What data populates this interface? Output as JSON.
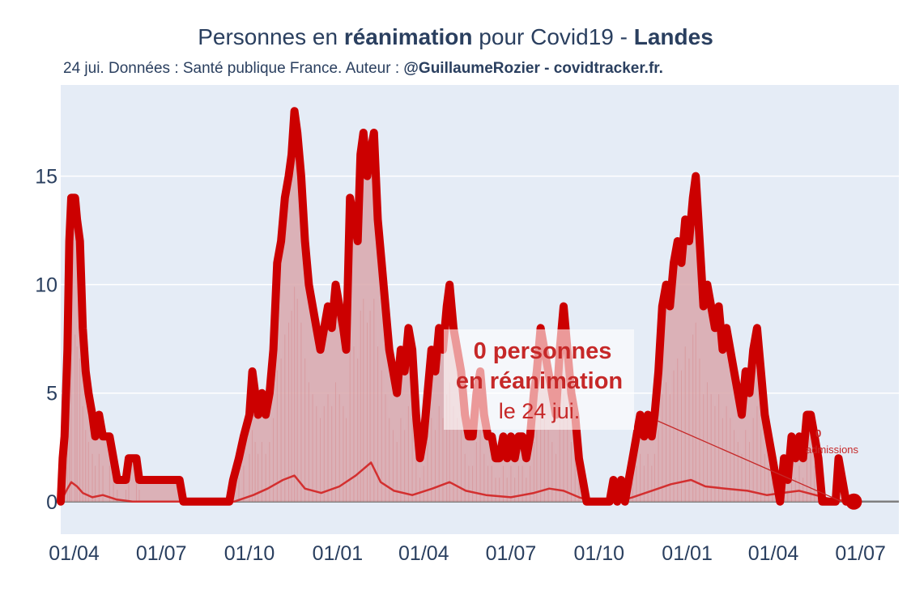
{
  "title": {
    "part1": "Personnes en ",
    "bold1": "réanimation",
    "part2": " pour Covid19 - ",
    "bold2": "Landes"
  },
  "subtitle": {
    "text": "24 jui. Données : Santé publique France. Auteur : ",
    "bold": "@GuillaumeRozier - covidtracker.fr."
  },
  "annotation": {
    "line1": "0 personnes",
    "line2": "en réanimation",
    "line3": "le 24 jui.",
    "small1": "0",
    "small2": "admissions"
  },
  "colors": {
    "main_line": "#cc0000",
    "fill": "#d9a7ab",
    "admissions_line": "#d32f2f",
    "background": "#e5ecf6",
    "grid": "#ffffff",
    "zero_line": "#7f7f7f"
  },
  "chart_data": {
    "type": "line",
    "x_axis": {
      "tick_labels": [
        "01/04",
        "01/07",
        "01/10",
        "01/01",
        "01/04",
        "01/07",
        "01/10",
        "01/01",
        "01/04",
        "01/07"
      ],
      "tick_dates": [
        "2020-04-01",
        "2020-07-01",
        "2020-10-01",
        "2021-01-01",
        "2021-04-01",
        "2021-07-01",
        "2021-10-01",
        "2022-01-01",
        "2022-04-01",
        "2022-07-01"
      ],
      "range": [
        "2020-03-18",
        "2022-08-10"
      ]
    },
    "y_axis": {
      "tick_values": [
        0,
        5,
        10,
        15
      ],
      "range": [
        -1.5,
        19.2
      ]
    },
    "grid": true,
    "series": [
      {
        "role": "reanimation",
        "points": [
          [
            "2020-03-18",
            0
          ],
          [
            "2020-03-20",
            2
          ],
          [
            "2020-03-22",
            3
          ],
          [
            "2020-03-25",
            7
          ],
          [
            "2020-03-27",
            12
          ],
          [
            "2020-03-29",
            14
          ],
          [
            "2020-04-02",
            14
          ],
          [
            "2020-04-04",
            13
          ],
          [
            "2020-04-07",
            12
          ],
          [
            "2020-04-10",
            8
          ],
          [
            "2020-04-13",
            6
          ],
          [
            "2020-04-16",
            5
          ],
          [
            "2020-04-20",
            4
          ],
          [
            "2020-04-23",
            3
          ],
          [
            "2020-04-27",
            4
          ],
          [
            "2020-05-01",
            3
          ],
          [
            "2020-05-08",
            3
          ],
          [
            "2020-05-12",
            2
          ],
          [
            "2020-05-16",
            1
          ],
          [
            "2020-05-25",
            1
          ],
          [
            "2020-05-28",
            2
          ],
          [
            "2020-06-05",
            2
          ],
          [
            "2020-06-08",
            1
          ],
          [
            "2020-07-20",
            1
          ],
          [
            "2020-07-24",
            0
          ],
          [
            "2020-09-10",
            0
          ],
          [
            "2020-09-14",
            1
          ],
          [
            "2020-09-20",
            2
          ],
          [
            "2020-09-25",
            3
          ],
          [
            "2020-10-01",
            4
          ],
          [
            "2020-10-04",
            6
          ],
          [
            "2020-10-07",
            5
          ],
          [
            "2020-10-10",
            4
          ],
          [
            "2020-10-14",
            5
          ],
          [
            "2020-10-18",
            4
          ],
          [
            "2020-10-22",
            5
          ],
          [
            "2020-10-26",
            7
          ],
          [
            "2020-10-30",
            11
          ],
          [
            "2020-11-03",
            12
          ],
          [
            "2020-11-07",
            14
          ],
          [
            "2020-11-11",
            15
          ],
          [
            "2020-11-14",
            16
          ],
          [
            "2020-11-17",
            18
          ],
          [
            "2020-11-20",
            17
          ],
          [
            "2020-11-24",
            15
          ],
          [
            "2020-11-28",
            12
          ],
          [
            "2020-12-02",
            10
          ],
          [
            "2020-12-06",
            9
          ],
          [
            "2020-12-10",
            8
          ],
          [
            "2020-12-14",
            7
          ],
          [
            "2020-12-18",
            8
          ],
          [
            "2020-12-22",
            9
          ],
          [
            "2020-12-26",
            8
          ],
          [
            "2020-12-30",
            10
          ],
          [
            "2021-01-03",
            9
          ],
          [
            "2021-01-07",
            8
          ],
          [
            "2021-01-10",
            7
          ],
          [
            "2021-01-14",
            14
          ],
          [
            "2021-01-18",
            13
          ],
          [
            "2021-01-22",
            12
          ],
          [
            "2021-01-25",
            16
          ],
          [
            "2021-01-28",
            17
          ],
          [
            "2021-02-01",
            15
          ],
          [
            "2021-02-04",
            16
          ],
          [
            "2021-02-08",
            17
          ],
          [
            "2021-02-12",
            13
          ],
          [
            "2021-02-16",
            11
          ],
          [
            "2021-02-20",
            9
          ],
          [
            "2021-02-24",
            7
          ],
          [
            "2021-02-28",
            6
          ],
          [
            "2021-03-04",
            5
          ],
          [
            "2021-03-08",
            7
          ],
          [
            "2021-03-12",
            6
          ],
          [
            "2021-03-16",
            8
          ],
          [
            "2021-03-20",
            7
          ],
          [
            "2021-03-24",
            4
          ],
          [
            "2021-03-28",
            2
          ],
          [
            "2021-04-01",
            3
          ],
          [
            "2021-04-05",
            5
          ],
          [
            "2021-04-09",
            7
          ],
          [
            "2021-04-13",
            6
          ],
          [
            "2021-04-17",
            8
          ],
          [
            "2021-04-21",
            7
          ],
          [
            "2021-04-25",
            9
          ],
          [
            "2021-04-28",
            10
          ],
          [
            "2021-05-02",
            8
          ],
          [
            "2021-05-06",
            7
          ],
          [
            "2021-05-10",
            6
          ],
          [
            "2021-05-14",
            4
          ],
          [
            "2021-05-18",
            3
          ],
          [
            "2021-05-22",
            3
          ],
          [
            "2021-05-26",
            5
          ],
          [
            "2021-05-30",
            6
          ],
          [
            "2021-06-03",
            4
          ],
          [
            "2021-06-07",
            3
          ],
          [
            "2021-06-11",
            3
          ],
          [
            "2021-06-15",
            2
          ],
          [
            "2021-06-19",
            2
          ],
          [
            "2021-06-23",
            3
          ],
          [
            "2021-06-27",
            2
          ],
          [
            "2021-07-01",
            3
          ],
          [
            "2021-07-05",
            2
          ],
          [
            "2021-07-09",
            3
          ],
          [
            "2021-07-13",
            3
          ],
          [
            "2021-07-17",
            2
          ],
          [
            "2021-07-21",
            3
          ],
          [
            "2021-07-25",
            5
          ],
          [
            "2021-07-28",
            6
          ],
          [
            "2021-08-01",
            8
          ],
          [
            "2021-08-05",
            7
          ],
          [
            "2021-08-09",
            6
          ],
          [
            "2021-08-13",
            5
          ],
          [
            "2021-08-17",
            4
          ],
          [
            "2021-08-21",
            7
          ],
          [
            "2021-08-25",
            9
          ],
          [
            "2021-08-29",
            7
          ],
          [
            "2021-09-02",
            5
          ],
          [
            "2021-09-06",
            4
          ],
          [
            "2021-09-10",
            2
          ],
          [
            "2021-09-14",
            1
          ],
          [
            "2021-09-18",
            0
          ],
          [
            "2021-10-12",
            0
          ],
          [
            "2021-10-16",
            1
          ],
          [
            "2021-10-20",
            0
          ],
          [
            "2021-10-24",
            1
          ],
          [
            "2021-10-28",
            0
          ],
          [
            "2021-11-01",
            1
          ],
          [
            "2021-11-05",
            2
          ],
          [
            "2021-11-09",
            3
          ],
          [
            "2021-11-13",
            4
          ],
          [
            "2021-11-17",
            3
          ],
          [
            "2021-11-21",
            4
          ],
          [
            "2021-11-25",
            3
          ],
          [
            "2021-11-28",
            4
          ],
          [
            "2021-12-02",
            6
          ],
          [
            "2021-12-06",
            9
          ],
          [
            "2021-12-10",
            10
          ],
          [
            "2021-12-14",
            9
          ],
          [
            "2021-12-18",
            11
          ],
          [
            "2021-12-22",
            12
          ],
          [
            "2021-12-26",
            11
          ],
          [
            "2021-12-30",
            13
          ],
          [
            "2022-01-03",
            12
          ],
          [
            "2022-01-07",
            14
          ],
          [
            "2022-01-10",
            15
          ],
          [
            "2022-01-14",
            12
          ],
          [
            "2022-01-18",
            9
          ],
          [
            "2022-01-22",
            10
          ],
          [
            "2022-01-26",
            9
          ],
          [
            "2022-01-30",
            8
          ],
          [
            "2022-02-03",
            9
          ],
          [
            "2022-02-07",
            7
          ],
          [
            "2022-02-11",
            8
          ],
          [
            "2022-02-15",
            7
          ],
          [
            "2022-02-19",
            6
          ],
          [
            "2022-02-23",
            5
          ],
          [
            "2022-02-27",
            4
          ],
          [
            "2022-03-03",
            6
          ],
          [
            "2022-03-07",
            5
          ],
          [
            "2022-03-11",
            7
          ],
          [
            "2022-03-15",
            8
          ],
          [
            "2022-03-19",
            6
          ],
          [
            "2022-03-23",
            4
          ],
          [
            "2022-03-27",
            3
          ],
          [
            "2022-03-31",
            2
          ],
          [
            "2022-04-04",
            1
          ],
          [
            "2022-04-08",
            0
          ],
          [
            "2022-04-12",
            2
          ],
          [
            "2022-04-16",
            1
          ],
          [
            "2022-04-20",
            3
          ],
          [
            "2022-04-24",
            2
          ],
          [
            "2022-04-28",
            3
          ],
          [
            "2022-05-02",
            2
          ],
          [
            "2022-05-06",
            4
          ],
          [
            "2022-05-10",
            4
          ],
          [
            "2022-05-14",
            3
          ],
          [
            "2022-05-18",
            2
          ],
          [
            "2022-05-22",
            0
          ],
          [
            "2022-06-05",
            0
          ],
          [
            "2022-06-08",
            2
          ],
          [
            "2022-06-12",
            1
          ],
          [
            "2022-06-16",
            0
          ],
          [
            "2022-06-24",
            0
          ]
        ]
      },
      {
        "role": "admissions",
        "points": [
          [
            "2020-03-18",
            0
          ],
          [
            "2020-03-25",
            0.6
          ],
          [
            "2020-03-29",
            0.9
          ],
          [
            "2020-04-04",
            0.7
          ],
          [
            "2020-04-10",
            0.4
          ],
          [
            "2020-04-20",
            0.2
          ],
          [
            "2020-05-01",
            0.3
          ],
          [
            "2020-05-15",
            0.1
          ],
          [
            "2020-06-01",
            0
          ],
          [
            "2020-09-15",
            0
          ],
          [
            "2020-10-05",
            0.3
          ],
          [
            "2020-10-20",
            0.6
          ],
          [
            "2020-11-05",
            1.0
          ],
          [
            "2020-11-17",
            1.2
          ],
          [
            "2020-11-28",
            0.6
          ],
          [
            "2020-12-15",
            0.4
          ],
          [
            "2021-01-03",
            0.7
          ],
          [
            "2021-01-20",
            1.2
          ],
          [
            "2021-02-05",
            1.8
          ],
          [
            "2021-02-15",
            0.9
          ],
          [
            "2021-03-01",
            0.5
          ],
          [
            "2021-03-20",
            0.3
          ],
          [
            "2021-04-10",
            0.6
          ],
          [
            "2021-04-28",
            0.9
          ],
          [
            "2021-05-15",
            0.5
          ],
          [
            "2021-06-05",
            0.3
          ],
          [
            "2021-07-01",
            0.2
          ],
          [
            "2021-07-25",
            0.4
          ],
          [
            "2021-08-10",
            0.6
          ],
          [
            "2021-08-25",
            0.5
          ],
          [
            "2021-09-10",
            0.2
          ],
          [
            "2021-09-25",
            0
          ],
          [
            "2021-10-20",
            0
          ],
          [
            "2021-11-05",
            0.2
          ],
          [
            "2021-11-25",
            0.5
          ],
          [
            "2021-12-15",
            0.8
          ],
          [
            "2022-01-05",
            1.0
          ],
          [
            "2022-01-20",
            0.7
          ],
          [
            "2022-02-10",
            0.6
          ],
          [
            "2022-03-05",
            0.5
          ],
          [
            "2022-03-25",
            0.3
          ],
          [
            "2022-04-10",
            0.4
          ],
          [
            "2022-04-28",
            0.5
          ],
          [
            "2022-05-15",
            0.3
          ],
          [
            "2022-06-01",
            0.1
          ],
          [
            "2022-06-24",
            0
          ]
        ]
      }
    ],
    "last_point": {
      "date": "2022-06-24",
      "value": 0
    }
  }
}
